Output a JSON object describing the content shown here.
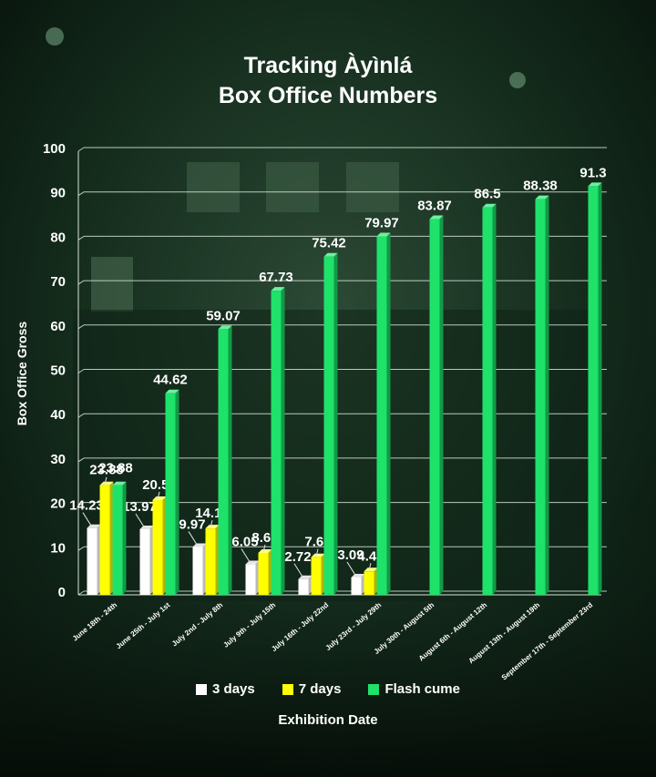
{
  "title_line1": "Tracking Àyìnlá",
  "title_line2": "Box Office Numbers",
  "chart_data": {
    "type": "bar",
    "title": "Tracking Àyìnlá Box Office Numbers",
    "xlabel": "Exhibition Date",
    "ylabel": "Box Office Gross",
    "ylim": [
      0,
      100
    ],
    "yticks": [
      0,
      10,
      20,
      30,
      40,
      50,
      60,
      70,
      80,
      90,
      100
    ],
    "grid": true,
    "legend_position": "bottom",
    "categories": [
      "June 18th - 24th",
      "June 25th - July 1st",
      "July 2nd - July 8th",
      "July 9th - July 15th",
      "July 16th - July 22nd",
      "July 23rd - July 29th",
      "July 30th - August 5th",
      "August 6th - August 12th",
      "August 13th - August 19th",
      "September 17th - September 23rd"
    ],
    "series": [
      {
        "name": "3 days",
        "color": "#ffffff",
        "values": [
          14.23,
          13.97,
          9.97,
          6.05,
          2.72,
          3.09,
          null,
          null,
          null,
          null
        ]
      },
      {
        "name": "7 days",
        "color": "#ffff00",
        "values": [
          23.88,
          20.53,
          14.14,
          8.63,
          7.65,
          4.46,
          null,
          null,
          null,
          null
        ]
      },
      {
        "name": "Flash cume",
        "color": "#1ee26a",
        "values": [
          23.88,
          44.62,
          59.07,
          67.73,
          75.42,
          79.97,
          83.87,
          86.5,
          88.38,
          91.3
        ]
      }
    ]
  }
}
